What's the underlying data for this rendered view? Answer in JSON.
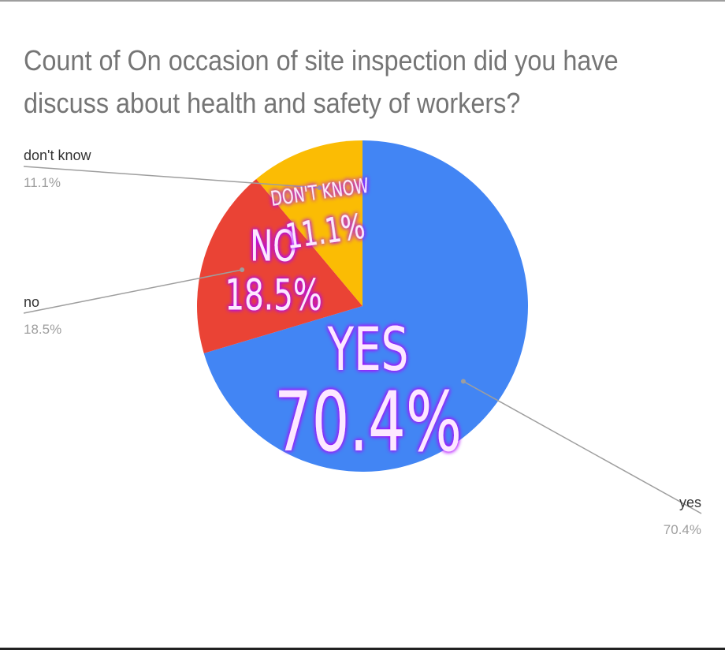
{
  "chart_data": {
    "type": "pie",
    "title": "Count of On occasion of site inspection did you have discuss about health and safety of workers?",
    "slices": [
      {
        "label": "yes",
        "value": 70.4,
        "percent_label": "70.4%",
        "in_label": "YES",
        "in_value": "70.4%",
        "color": "#4285f4"
      },
      {
        "label": "no",
        "value": 18.5,
        "percent_label": "18.5%",
        "in_label": "NO",
        "in_value": "18.5%",
        "color": "#ea4335"
      },
      {
        "label": "don't know",
        "value": 11.1,
        "percent_label": "11.1%",
        "in_label": "DON'T KNOW",
        "in_value": "11.1%",
        "color": "#fbbc04"
      }
    ],
    "start_angle_deg": 0,
    "direction": "clockwise"
  },
  "colors": {
    "title": "#757575",
    "leader": "#9e9e9e",
    "outside_label": "#333333",
    "outside_percent": "#9e9e9e",
    "inner_text": "#fde8ff",
    "inner_glow": "#b000ff"
  }
}
